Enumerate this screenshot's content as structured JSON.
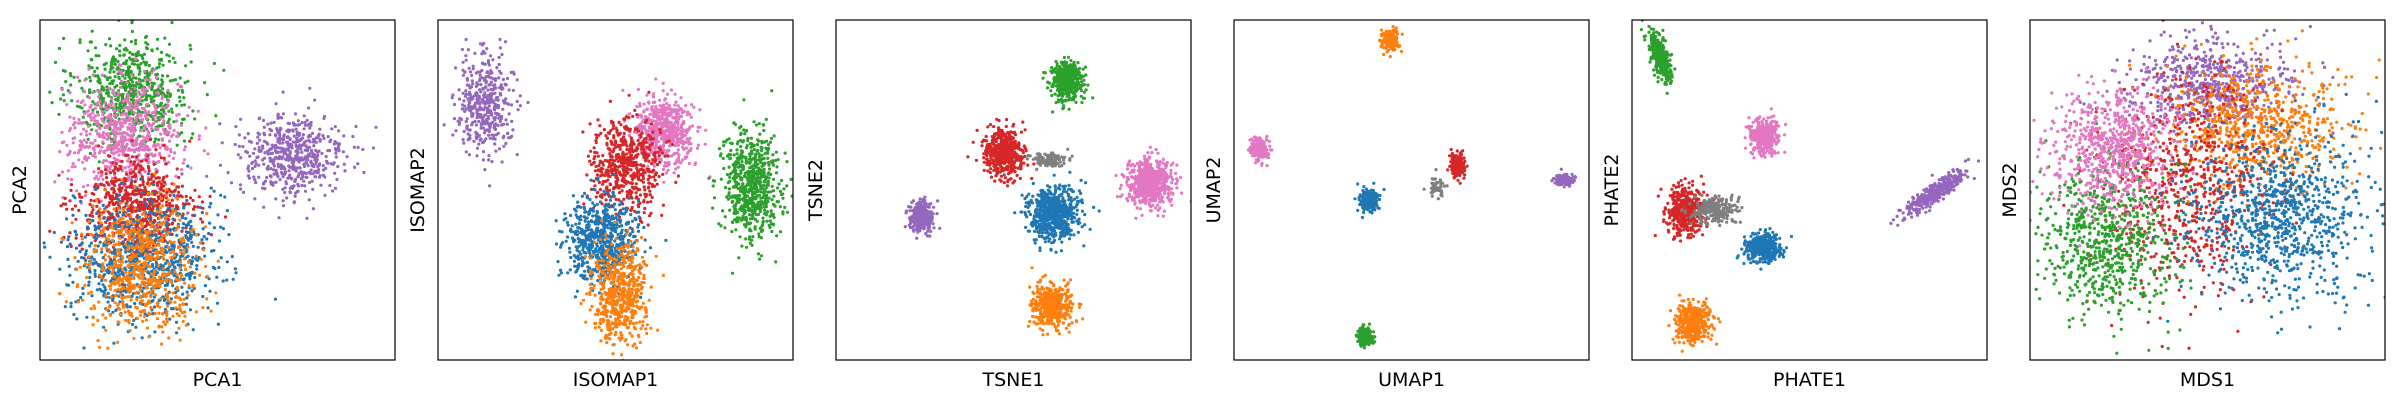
{
  "figure": {
    "colors": {
      "blue": "#1f77b4",
      "orange": "#ff7f0e",
      "green": "#2ca02c",
      "red": "#d62728",
      "purple": "#9467bd",
      "pink": "#e377c2",
      "gray": "#7f7f7f"
    }
  },
  "chart_data": [
    {
      "type": "scatter",
      "xlabel": "PCA1",
      "ylabel": "PCA2",
      "xlim": [
        0,
        100
      ],
      "ylim": [
        0,
        100
      ],
      "ticks_shown": false,
      "grid": false,
      "legend": "none",
      "clusters": [
        {
          "color": "green",
          "cx": 26,
          "cy": 79,
          "sx": 8,
          "sy": 8,
          "n": 650
        },
        {
          "color": "pink",
          "cx": 24,
          "cy": 66,
          "sx": 8,
          "sy": 8,
          "n": 650
        },
        {
          "color": "purple",
          "cx": 71,
          "cy": 60,
          "sx": 7.5,
          "sy": 6,
          "n": 520
        },
        {
          "color": "red",
          "cx": 27,
          "cy": 45,
          "sx": 8,
          "sy": 7,
          "n": 650
        },
        {
          "color": "blue",
          "cx": 29,
          "cy": 30,
          "sx": 10,
          "sy": 9,
          "n": 800
        },
        {
          "color": "orange",
          "cx": 29,
          "cy": 28,
          "sx": 8,
          "sy": 9,
          "n": 650
        }
      ]
    },
    {
      "type": "scatter",
      "xlabel": "ISOMAP1",
      "ylabel": "ISOMAP2",
      "xlim": [
        0,
        100
      ],
      "ylim": [
        0,
        100
      ],
      "ticks_shown": false,
      "grid": false,
      "legend": "none",
      "clusters": [
        {
          "color": "purple",
          "cx": 13,
          "cy": 75,
          "sx": 4,
          "sy": 7,
          "n": 420
        },
        {
          "color": "pink",
          "cx": 64,
          "cy": 67,
          "sx": 4,
          "sy": 5,
          "n": 550
        },
        {
          "color": "red",
          "cx": 53,
          "cy": 57,
          "sx": 5,
          "sy": 7,
          "n": 550
        },
        {
          "color": "green",
          "cx": 88,
          "cy": 51,
          "sx": 4,
          "sy": 8,
          "n": 650
        },
        {
          "color": "blue",
          "cx": 46,
          "cy": 35,
          "sx": 5,
          "sy": 6,
          "n": 650
        },
        {
          "color": "orange",
          "cx": 51,
          "cy": 20,
          "sx": 4,
          "sy": 7,
          "n": 550
        }
      ]
    },
    {
      "type": "scatter",
      "xlabel": "TSNE1",
      "ylabel": "TSNE2",
      "xlim": [
        0,
        100
      ],
      "ylim": [
        0,
        100
      ],
      "ticks_shown": false,
      "grid": false,
      "legend": "none",
      "clusters": [
        {
          "color": "green",
          "cx": 65,
          "cy": 82,
          "sx": 2.2,
          "sy": 2.8,
          "n": 450
        },
        {
          "color": "red",
          "cx": 47,
          "cy": 61,
          "sx": 2.8,
          "sy": 3.5,
          "n": 500
        },
        {
          "color": "gray",
          "cx": 60,
          "cy": 59,
          "sx": 2.5,
          "sy": 1,
          "n": 120
        },
        {
          "color": "pink",
          "cx": 88,
          "cy": 52,
          "sx": 3.2,
          "sy": 3.5,
          "n": 600
        },
        {
          "color": "blue",
          "cx": 61,
          "cy": 43,
          "sx": 3.5,
          "sy": 4,
          "n": 650
        },
        {
          "color": "purple",
          "cx": 24,
          "cy": 42,
          "sx": 1.8,
          "sy": 2.2,
          "n": 250
        },
        {
          "color": "orange",
          "cx": 61,
          "cy": 16,
          "sx": 2.8,
          "sy": 3.2,
          "n": 450
        }
      ]
    },
    {
      "type": "scatter",
      "xlabel": "UMAP1",
      "ylabel": "UMAP2",
      "xlim": [
        0,
        100
      ],
      "ylim": [
        0,
        100
      ],
      "ticks_shown": false,
      "grid": false,
      "legend": "none",
      "clusters": [
        {
          "color": "orange",
          "cx": 44,
          "cy": 94,
          "sx": 1.2,
          "sy": 1.5,
          "n": 200
        },
        {
          "color": "pink",
          "cx": 7,
          "cy": 62,
          "sx": 1.3,
          "sy": 1.5,
          "n": 200
        },
        {
          "color": "red",
          "cx": 63,
          "cy": 57,
          "sx": 1,
          "sy": 1.8,
          "n": 200
        },
        {
          "color": "gray",
          "cx": 57,
          "cy": 51,
          "sx": 1.2,
          "sy": 1.5,
          "n": 50
        },
        {
          "color": "purple",
          "cx": 93,
          "cy": 53,
          "sx": 1.2,
          "sy": 0.8,
          "n": 120
        },
        {
          "color": "blue",
          "cx": 38,
          "cy": 47,
          "sx": 1.3,
          "sy": 1.6,
          "n": 220
        },
        {
          "color": "green",
          "cx": 37,
          "cy": 7,
          "sx": 1.1,
          "sy": 1.5,
          "n": 200
        }
      ]
    },
    {
      "type": "scatter",
      "xlabel": "PHATE1",
      "ylabel": "PHATE2",
      "xlim": [
        0,
        100
      ],
      "ylim": [
        0,
        100
      ],
      "ticks_shown": false,
      "grid": false,
      "legend": "none",
      "clusters": [
        {
          "color": "green",
          "cx": 8,
          "cy": 89,
          "sx": 1.3,
          "sy": 3.5,
          "n": 300,
          "rot": 0.3
        },
        {
          "color": "pink",
          "cx": 37,
          "cy": 66,
          "sx": 2,
          "sy": 2.5,
          "n": 350
        },
        {
          "color": "red",
          "cx": 15,
          "cy": 44,
          "sx": 2.5,
          "sy": 3.5,
          "n": 380
        },
        {
          "color": "gray",
          "cx": 23,
          "cy": 44,
          "sx": 3,
          "sy": 2,
          "n": 250
        },
        {
          "color": "blue",
          "cx": 37,
          "cy": 33,
          "sx": 2.5,
          "sy": 2,
          "n": 400
        },
        {
          "color": "purple",
          "cx": 85,
          "cy": 49,
          "sx": 5.5,
          "sy": 1.2,
          "n": 350,
          "rot": 0.65
        },
        {
          "color": "orange",
          "cx": 17,
          "cy": 11,
          "sx": 2.5,
          "sy": 3,
          "n": 380
        }
      ]
    },
    {
      "type": "scatter",
      "xlabel": "MDS1",
      "ylabel": "MDS2",
      "xlim": [
        0,
        100
      ],
      "ylim": [
        0,
        100
      ],
      "ticks_shown": false,
      "grid": false,
      "legend": "none",
      "clusters": [
        {
          "color": "purple",
          "cx": 50,
          "cy": 81,
          "sx": 12,
          "sy": 7,
          "n": 600
        },
        {
          "color": "orange",
          "cx": 64,
          "cy": 68,
          "sx": 12,
          "sy": 9,
          "n": 700
        },
        {
          "color": "red",
          "cx": 44,
          "cy": 52,
          "sx": 12,
          "sy": 16,
          "n": 700
        },
        {
          "color": "green",
          "cx": 22,
          "cy": 35,
          "sx": 9,
          "sy": 11,
          "n": 700
        },
        {
          "color": "pink",
          "cx": 23,
          "cy": 62,
          "sx": 9,
          "sy": 9,
          "n": 700
        },
        {
          "color": "blue",
          "cx": 71,
          "cy": 42,
          "sx": 12,
          "sy": 12,
          "n": 900
        }
      ]
    }
  ]
}
